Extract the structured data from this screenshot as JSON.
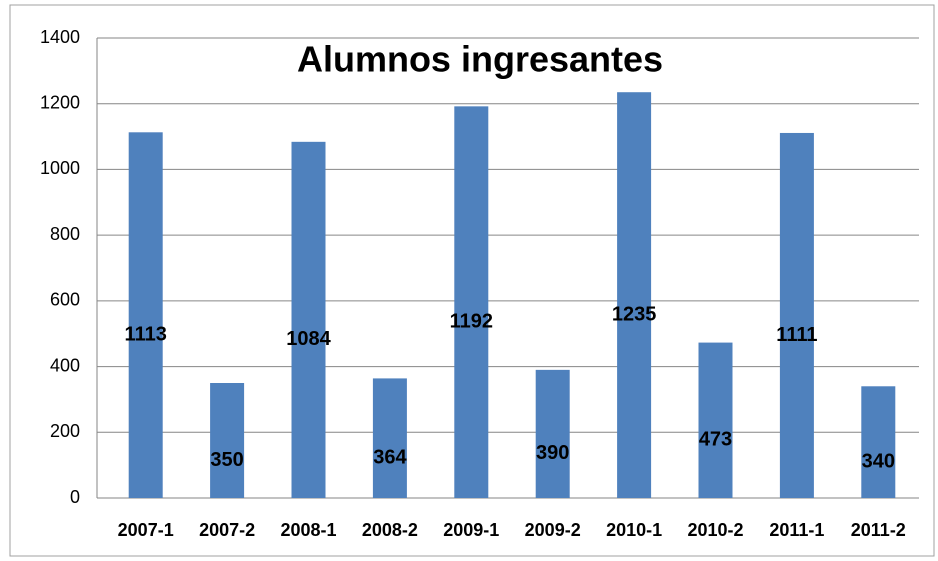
{
  "chart_data": {
    "type": "bar",
    "title": "Alumnos ingresantes",
    "categories": [
      "2007-1",
      "2007-2",
      "2008-1",
      "2008-2",
      "2009-1",
      "2009-2",
      "2010-1",
      "2010-2",
      "2011-1",
      "2011-2"
    ],
    "values": [
      1113,
      350,
      1084,
      364,
      1192,
      390,
      1235,
      473,
      1111,
      340
    ],
    "color": "#4f81bd",
    "ylim": [
      0,
      1400
    ],
    "yticks": [
      0,
      200,
      400,
      600,
      800,
      1000,
      1200,
      1400
    ],
    "grid": true
  }
}
